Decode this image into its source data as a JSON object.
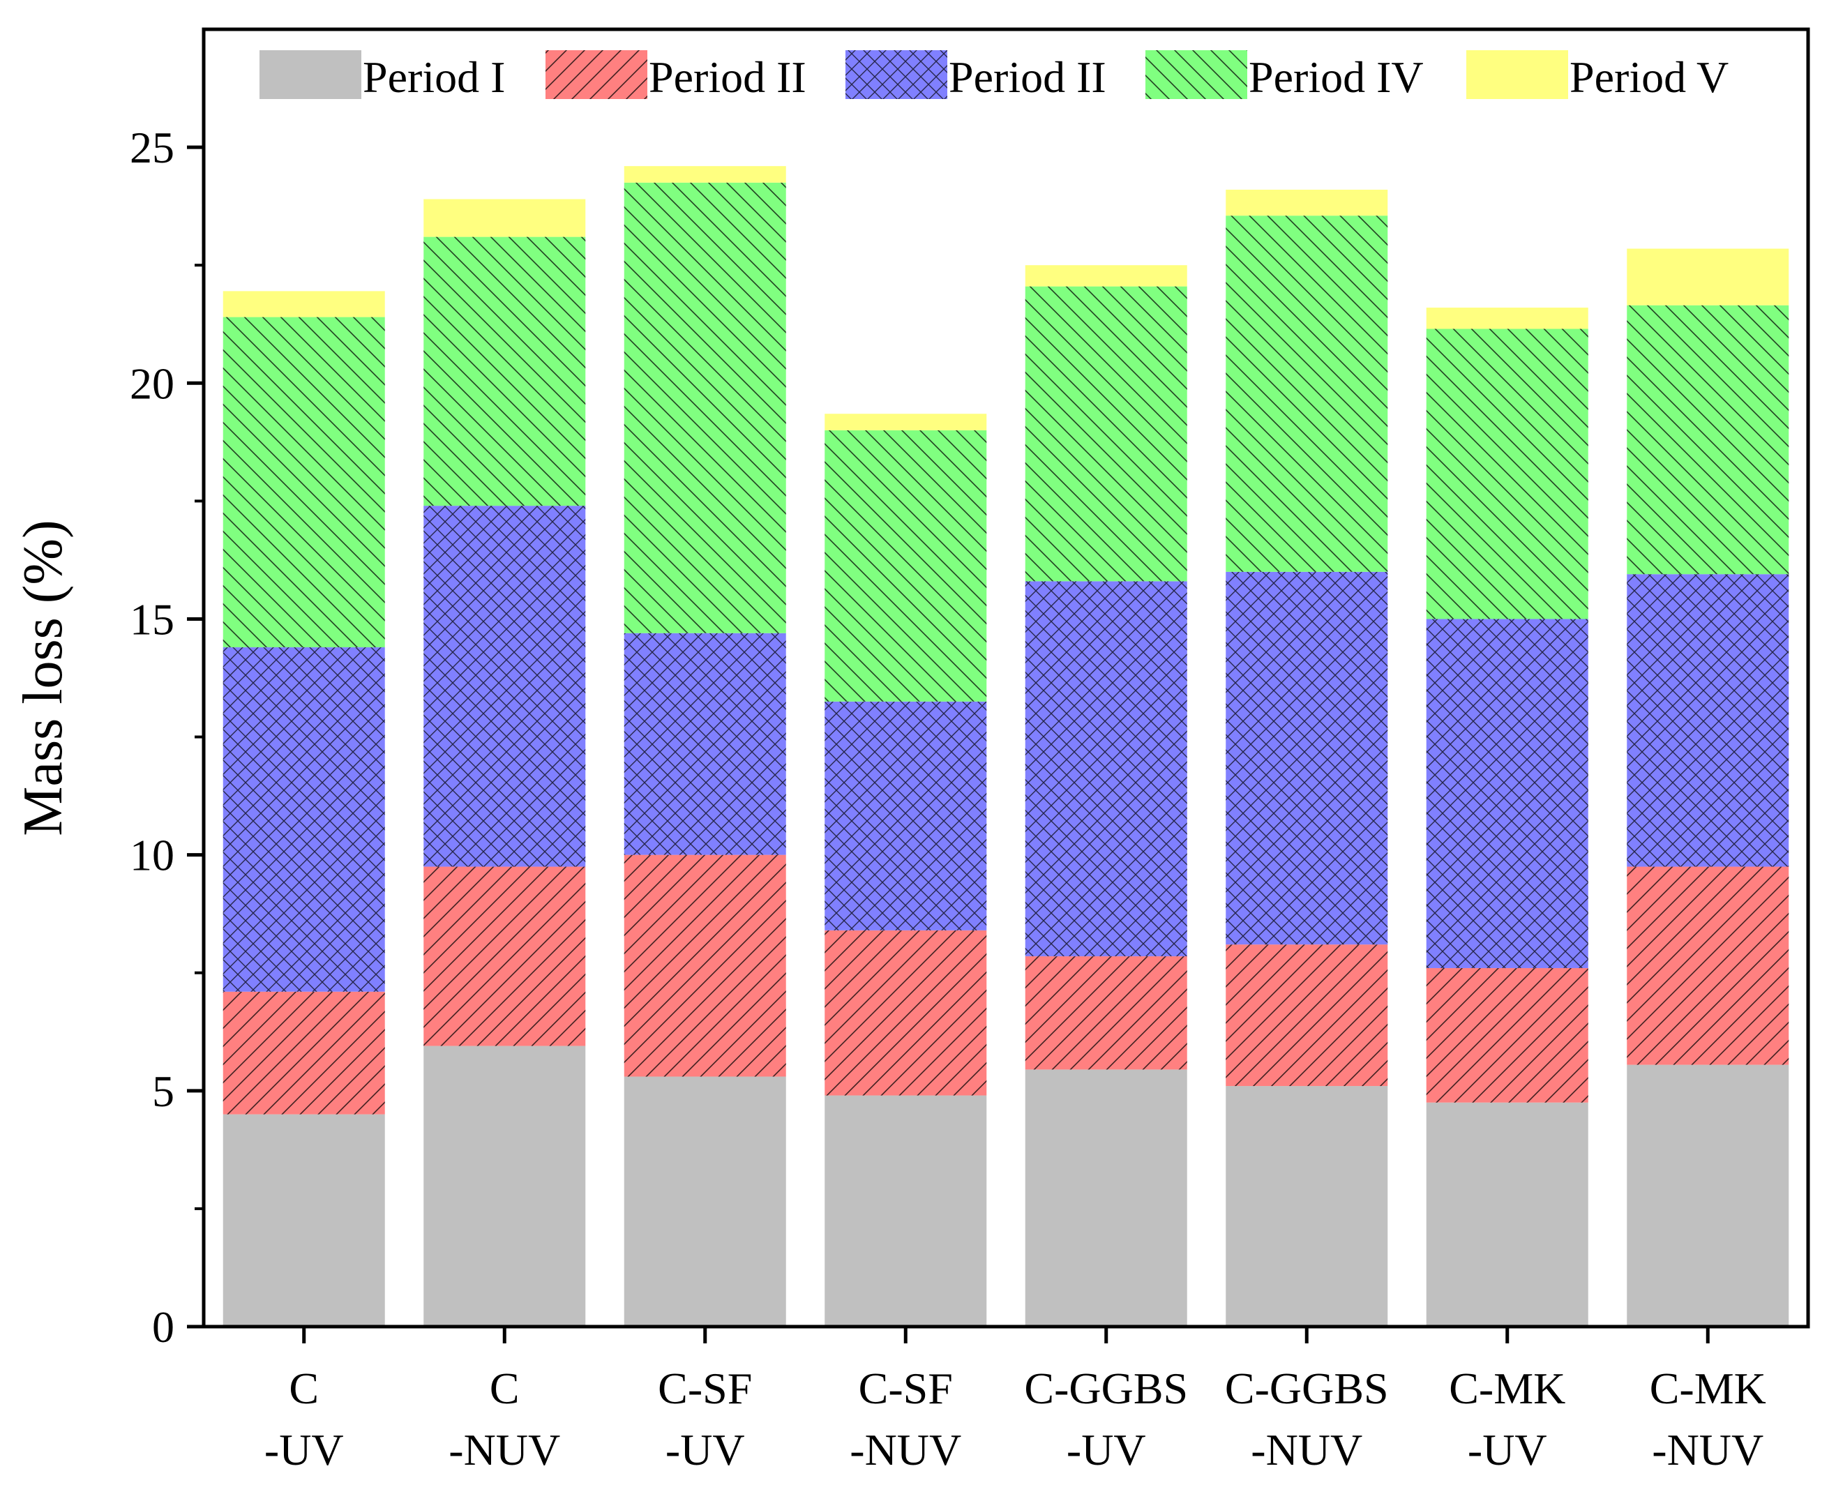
{
  "chart_data": {
    "type": "bar",
    "stacked": true,
    "title": "",
    "xlabel": "",
    "ylabel": "Mass loss (%)",
    "ylim": [
      0,
      27.5
    ],
    "yticks": [
      "0",
      "5",
      "10",
      "15",
      "20",
      "25"
    ],
    "grid": false,
    "legend_position": "top",
    "categories": [
      [
        "C",
        "-UV"
      ],
      [
        "C",
        "-NUV"
      ],
      [
        "C-SF",
        "-UV"
      ],
      [
        "C-SF",
        "-NUV"
      ],
      [
        "C-GGBS",
        "-UV"
      ],
      [
        "C-GGBS",
        "-NUV"
      ],
      [
        "C-MK",
        "-UV"
      ],
      [
        "C-MK",
        "-NUV"
      ]
    ],
    "series": [
      {
        "name": "Period I",
        "color": "#c0c0c0",
        "pattern": "none",
        "values": [
          4.5,
          5.95,
          5.3,
          4.9,
          5.45,
          5.1,
          4.75,
          5.55
        ]
      },
      {
        "name": "Period II",
        "color": "#ff8080",
        "pattern": "diag-up",
        "values": [
          2.6,
          3.8,
          4.7,
          3.5,
          2.4,
          3.0,
          2.85,
          4.2
        ]
      },
      {
        "name": "Period II",
        "color": "#8080ff",
        "pattern": "cross",
        "values": [
          7.3,
          7.65,
          4.7,
          4.85,
          7.95,
          7.9,
          7.4,
          6.2
        ]
      },
      {
        "name": "Period IV",
        "color": "#80ff80",
        "pattern": "diag-down",
        "values": [
          7.0,
          5.7,
          9.55,
          5.75,
          6.25,
          7.55,
          6.15,
          5.7
        ]
      },
      {
        "name": "Period V",
        "color": "#ffff80",
        "pattern": "none",
        "values": [
          0.55,
          0.8,
          0.35,
          0.35,
          0.45,
          0.55,
          0.45,
          1.2
        ]
      }
    ]
  }
}
